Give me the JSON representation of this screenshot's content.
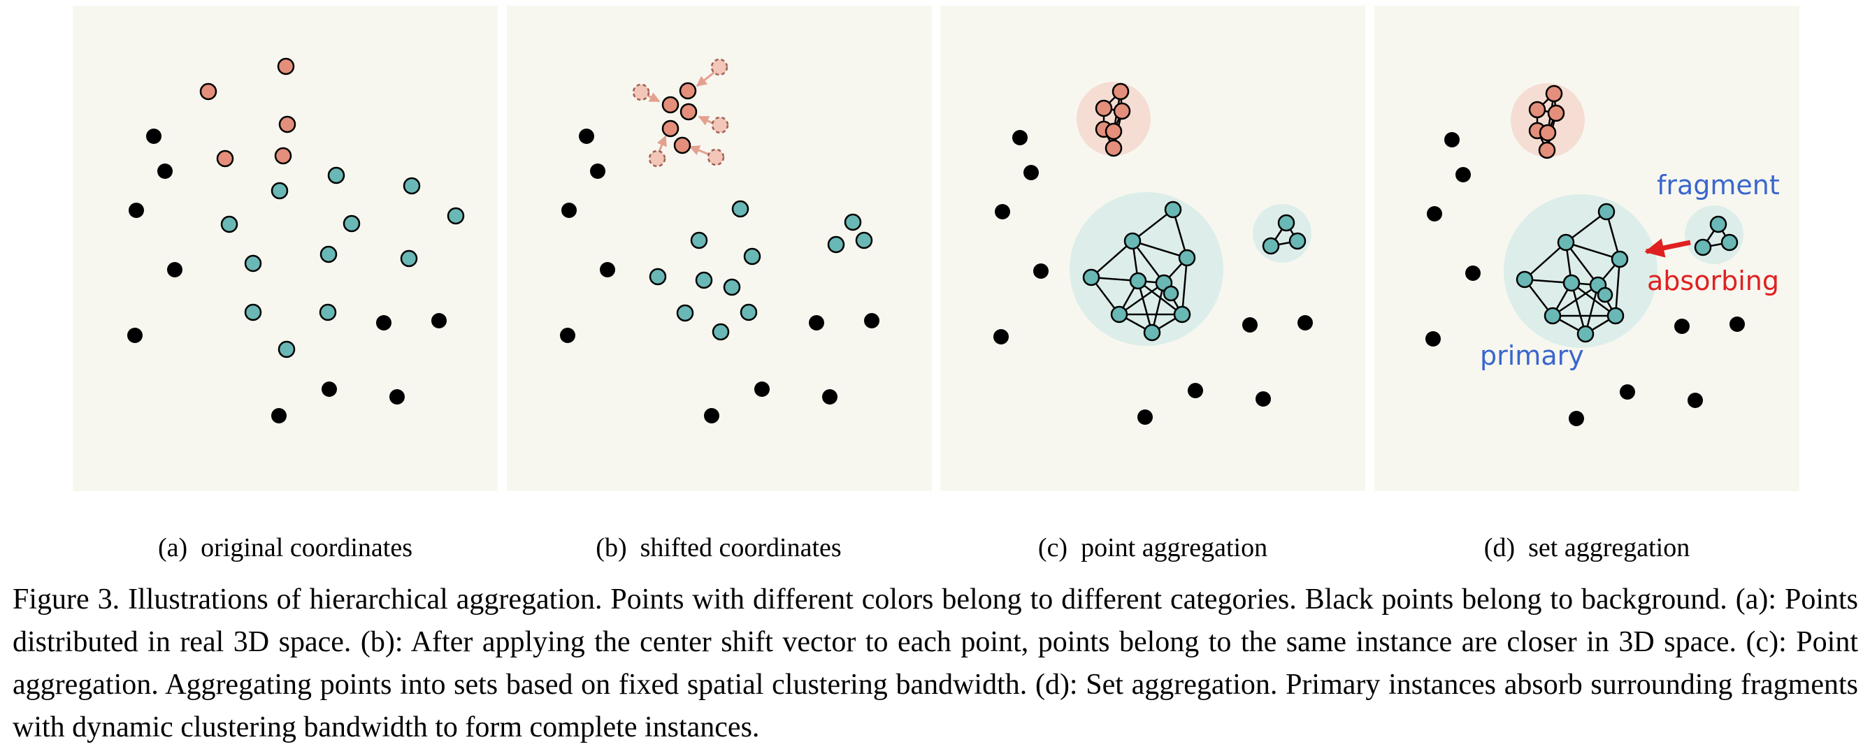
{
  "figure": {
    "colors": {
      "panel_bg": "#f7f7f0",
      "category_salmon": "#e48f7b",
      "category_teal": "#69b8b5",
      "background_point": "#000000",
      "salmon_halo": "#f5ddd3",
      "teal_halo": "#ddeeea",
      "label_blue": "#3a66cc",
      "label_red": "#e02020"
    },
    "annotations": {
      "fragment": "fragment",
      "absorbing": "absorbing",
      "primary": "primary"
    }
  },
  "subcaptions": {
    "a": {
      "letter": "(a)",
      "text": "original coordinates"
    },
    "b": {
      "letter": "(b)",
      "text": "shifted coordinates"
    },
    "c": {
      "letter": "(c)",
      "text": "point aggregation"
    },
    "d": {
      "letter": "(d)",
      "text": "set aggregation"
    }
  },
  "caption": {
    "label": "Figure 3.",
    "text": "Illustrations of hierarchical aggregation.  Points with different colors belong to different categories.  Black points belong to background. (a): Points distributed in real 3D space. (b): After applying the center shift vector to each point, points belong to the same instance are closer in 3D space. (c): Point aggregation. Aggregating points into sets based on fixed spatial clustering bandwidth. (d): Set aggregation. Primary instances absorb surrounding fragments with dynamic clustering bandwidth to form complete instances."
  }
}
